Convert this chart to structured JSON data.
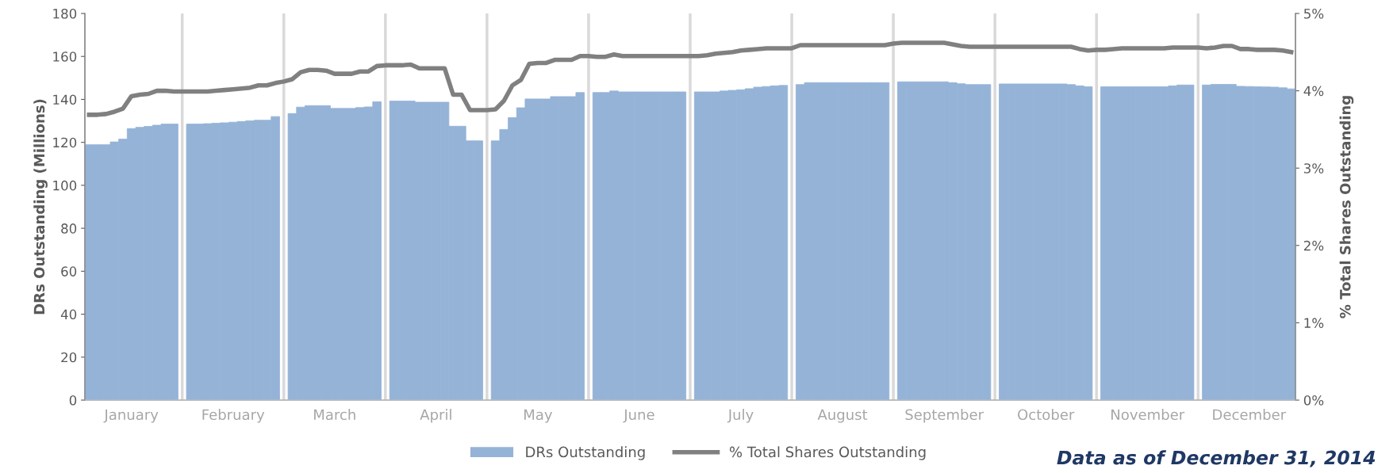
{
  "chart_data": {
    "type": "bar",
    "categories": [
      null,
      null,
      null,
      null,
      null,
      "January",
      null,
      null,
      null,
      null,
      null,
      null,
      null,
      null,
      null,
      null,
      null,
      "February",
      null,
      null,
      null,
      null,
      null,
      null,
      null,
      null,
      null,
      null,
      null,
      "March",
      null,
      null,
      null,
      null,
      null,
      null,
      null,
      null,
      null,
      null,
      null,
      "April",
      null,
      null,
      null,
      null,
      null,
      null,
      null,
      null,
      null,
      null,
      null,
      "May",
      null,
      null,
      null,
      null,
      null,
      null,
      null,
      null,
      null,
      null,
      null,
      "June",
      null,
      null,
      null,
      null,
      null,
      null,
      null,
      null,
      null,
      null,
      null,
      "July",
      null,
      null,
      null,
      null,
      null,
      null,
      null,
      null,
      null,
      null,
      null,
      "August",
      null,
      null,
      null,
      null,
      null,
      null,
      null,
      null,
      null,
      null,
      null,
      "September",
      null,
      null,
      null,
      null,
      null,
      null,
      null,
      null,
      null,
      null,
      null,
      "October",
      null,
      null,
      null,
      null,
      null,
      null,
      null,
      null,
      null,
      null,
      null,
      "November",
      null,
      null,
      null,
      null,
      null,
      null,
      null,
      null,
      null,
      null,
      null,
      "December",
      null,
      null,
      null,
      null,
      null
    ],
    "series": [
      {
        "name": "DRs Outstanding",
        "color": "#95b3d7",
        "values": [
          118.9,
          118.9,
          118.9,
          120.2,
          121.5,
          126.4,
          127.0,
          127.4,
          128.0,
          128.5,
          128.5,
          null,
          128.5,
          128.5,
          128.7,
          128.9,
          129.1,
          129.4,
          129.7,
          130.0,
          130.3,
          130.3,
          132.0,
          null,
          133.4,
          136.4,
          137.1,
          137.1,
          137.1,
          135.8,
          135.8,
          135.8,
          136.2,
          136.5,
          138.9,
          null,
          139.2,
          139.2,
          139.2,
          138.7,
          138.7,
          138.7,
          138.7,
          127.5,
          127.5,
          120.7,
          120.7,
          null,
          120.7,
          126.0,
          131.5,
          136.1,
          140.2,
          140.2,
          140.2,
          141.3,
          141.3,
          141.3,
          143.2,
          null,
          143.2,
          143.2,
          143.9,
          143.5,
          143.5,
          143.5,
          143.5,
          143.5,
          143.5,
          143.5,
          143.5,
          null,
          143.5,
          143.5,
          143.5,
          143.9,
          144.2,
          144.5,
          145.0,
          145.7,
          146.0,
          146.3,
          146.5,
          null,
          146.9,
          147.8,
          147.8,
          147.8,
          147.8,
          147.8,
          147.8,
          147.8,
          147.8,
          147.8,
          147.8,
          null,
          148.2,
          148.2,
          148.2,
          148.2,
          148.2,
          148.2,
          147.8,
          147.3,
          146.9,
          146.9,
          146.9,
          null,
          147.2,
          147.2,
          147.2,
          147.2,
          147.2,
          147.2,
          147.2,
          147.2,
          146.9,
          146.3,
          145.9,
          null,
          145.9,
          145.9,
          145.9,
          145.9,
          145.9,
          145.9,
          145.9,
          145.9,
          146.3,
          146.7,
          146.7,
          null,
          146.7,
          147.0,
          147.0,
          147.0,
          146.1,
          146.0,
          145.9,
          145.8,
          145.7,
          145.4,
          144.9
        ]
      },
      {
        "name": "% Total Shares Outstanding",
        "type": "line",
        "axis": "y2",
        "color": "#808080",
        "values": [
          3.69,
          3.69,
          3.7,
          3.73,
          3.77,
          3.93,
          3.95,
          3.96,
          4.0,
          4.0,
          3.99,
          3.99,
          3.99,
          3.99,
          3.99,
          4.0,
          4.01,
          4.02,
          4.03,
          4.04,
          4.07,
          4.07,
          4.1,
          4.12,
          4.15,
          4.24,
          4.27,
          4.27,
          4.26,
          4.22,
          4.22,
          4.22,
          4.25,
          4.25,
          4.32,
          4.33,
          4.33,
          4.33,
          4.34,
          4.29,
          4.29,
          4.29,
          4.29,
          3.95,
          3.95,
          3.75,
          3.75,
          3.75,
          3.76,
          3.87,
          4.07,
          4.14,
          4.35,
          4.36,
          4.36,
          4.4,
          4.4,
          4.4,
          4.45,
          4.45,
          4.44,
          4.44,
          4.47,
          4.45,
          4.45,
          4.45,
          4.45,
          4.45,
          4.45,
          4.45,
          4.45,
          4.45,
          4.45,
          4.46,
          4.48,
          4.49,
          4.5,
          4.52,
          4.53,
          4.54,
          4.55,
          4.55,
          4.55,
          4.55,
          4.59,
          4.59,
          4.59,
          4.59,
          4.59,
          4.59,
          4.59,
          4.59,
          4.59,
          4.59,
          4.59,
          4.61,
          4.62,
          4.62,
          4.62,
          4.62,
          4.62,
          4.62,
          4.6,
          4.58,
          4.57,
          4.57,
          4.57,
          4.57,
          4.57,
          4.57,
          4.57,
          4.57,
          4.57,
          4.57,
          4.57,
          4.57,
          4.57,
          4.54,
          4.52,
          4.53,
          4.53,
          4.54,
          4.55,
          4.55,
          4.55,
          4.55,
          4.55,
          4.55,
          4.56,
          4.56,
          4.56,
          4.56,
          4.55,
          4.56,
          4.58,
          4.58,
          4.54,
          4.54,
          4.53,
          4.53,
          4.53,
          4.52,
          4.5
        ]
      }
    ],
    "ylabel": "DRs Outstanding (Millions)",
    "y2label": "% Total Shares Outstanding",
    "ylim": [
      0,
      180
    ],
    "yticks": [
      0,
      20,
      40,
      60,
      80,
      100,
      120,
      140,
      160,
      180
    ],
    "y2lim": [
      0,
      5
    ],
    "y2ticks": [
      {
        "value": 0,
        "label": "0%"
      },
      {
        "value": 1,
        "label": "1%"
      },
      {
        "value": 2,
        "label": "2%"
      },
      {
        "value": 3,
        "label": "3%"
      },
      {
        "value": 4,
        "label": "4%"
      },
      {
        "value": 5,
        "label": "5%"
      }
    ],
    "annotations": [
      "Data as of December 31, 2014"
    ],
    "legend": "bottom",
    "grid": false,
    "line_style": "solid",
    "marker": "none"
  }
}
